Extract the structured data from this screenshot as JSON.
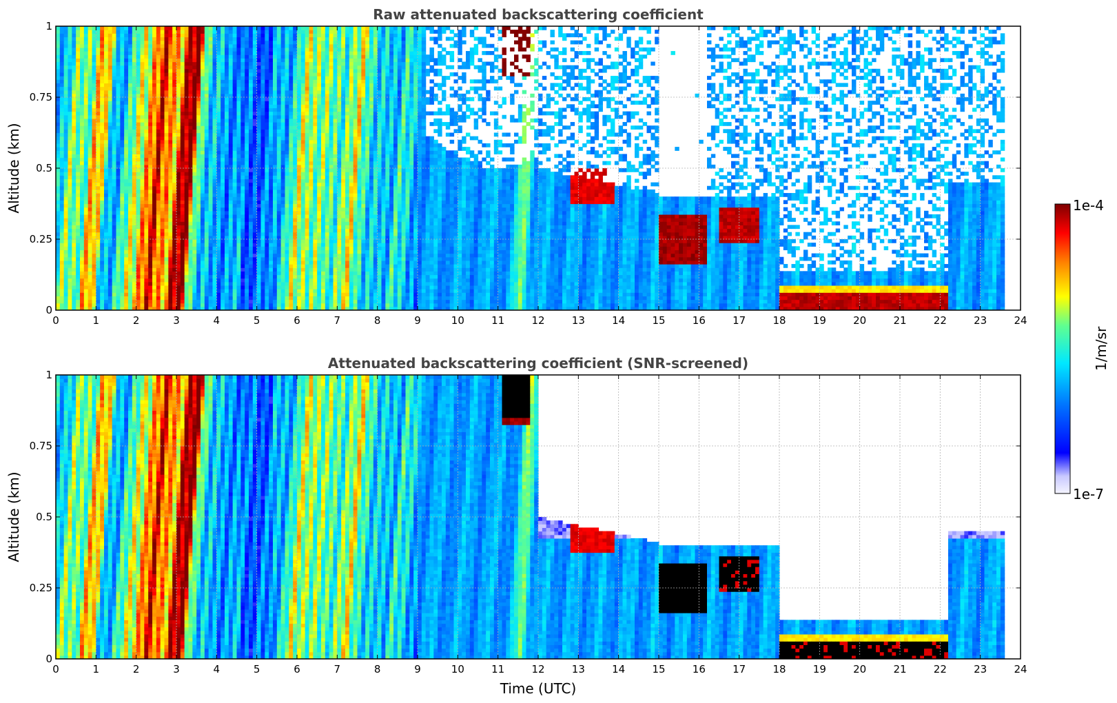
{
  "chart_data": [
    {
      "type": "heatmap",
      "title": "Raw attenuated backscattering coefficient",
      "xlabel": "",
      "ylabel": "Altitude (km)",
      "xlim": [
        0,
        24
      ],
      "ylim": [
        0,
        1
      ],
      "x_ticks": [
        "0",
        "1",
        "2",
        "3",
        "4",
        "5",
        "6",
        "7",
        "8",
        "9",
        "10",
        "11",
        "12",
        "13",
        "14",
        "15",
        "16",
        "17",
        "18",
        "19",
        "20",
        "21",
        "22",
        "23",
        "24"
      ],
      "y_ticks": [
        "0",
        "0.25",
        "0.5",
        "0.75",
        "1"
      ],
      "grid": true,
      "variant": "raw",
      "features": {
        "strong_plumes_utc": [
          [
            1.8,
            4.2
          ]
        ],
        "low_clouds_utc": [
          [
            15.0,
            17.5
          ]
        ],
        "surface_layer_utc": [
          [
            18.0,
            22.2
          ]
        ],
        "data_end_utc": 23.6
      }
    },
    {
      "type": "heatmap",
      "title": "Attenuated backscattering coefficient (SNR-screened)",
      "xlabel": "Time (UTC)",
      "ylabel": "Altitude (km)",
      "xlim": [
        0,
        24
      ],
      "ylim": [
        0,
        1
      ],
      "x_ticks": [
        "0",
        "1",
        "2",
        "3",
        "4",
        "5",
        "6",
        "7",
        "8",
        "9",
        "10",
        "11",
        "12",
        "13",
        "14",
        "15",
        "16",
        "17",
        "18",
        "19",
        "20",
        "21",
        "22",
        "23",
        "24"
      ],
      "y_ticks": [
        "0",
        "0.25",
        "0.5",
        "0.75",
        "1"
      ],
      "grid": true,
      "variant": "screened",
      "features": {
        "strong_plumes_utc": [
          [
            1.8,
            4.2
          ]
        ],
        "low_clouds_utc": [
          [
            15.0,
            17.5
          ]
        ],
        "surface_layer_utc": [
          [
            18.0,
            22.2
          ]
        ],
        "data_end_utc": 23.6
      }
    }
  ],
  "colorbar": {
    "max_label": "1e-4",
    "min_label": "1e-7",
    "unit_label": "1/m/sr",
    "placement": "right",
    "colormap": [
      "#00007f",
      "#0000ff",
      "#007fff",
      "#00ffff",
      "#7fff7f",
      "#ffff00",
      "#ff7f00",
      "#ff0000",
      "#7f0000"
    ]
  }
}
